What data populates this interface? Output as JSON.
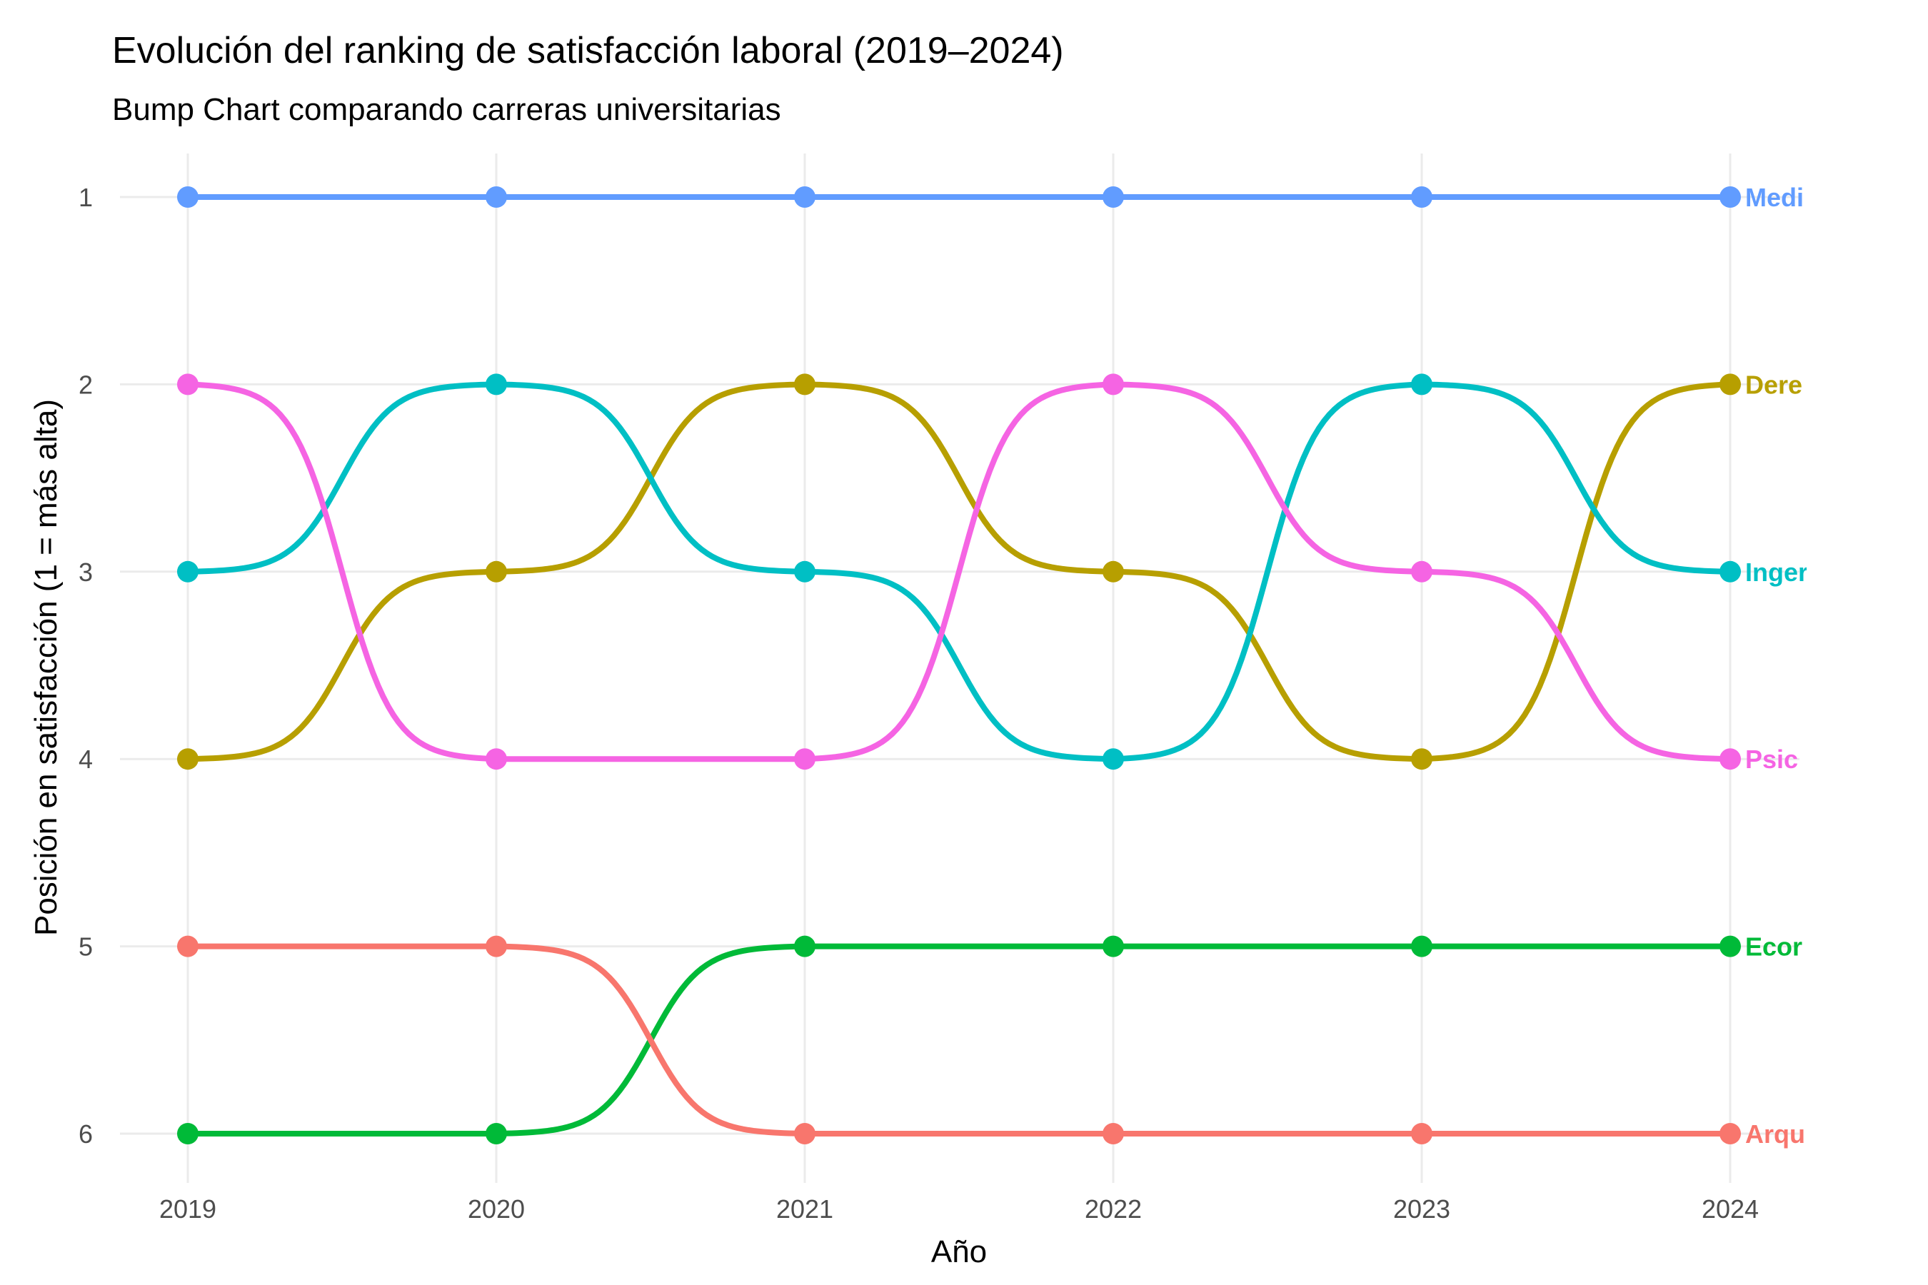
{
  "chart_data": {
    "type": "line",
    "title": "Evolución del ranking de satisfacción laboral (2019–2024)",
    "subtitle": "Bump Chart comparando carreras universitarias",
    "xlabel": "Año",
    "ylabel": "Posición en satisfacción (1 = más alta)",
    "x": [
      2019,
      2020,
      2021,
      2022,
      2023,
      2024
    ],
    "x_tick_labels": [
      "2019",
      "2020",
      "2021",
      "2022",
      "2023",
      "2024"
    ],
    "y_ticks": [
      1,
      2,
      3,
      4,
      5,
      6
    ],
    "y_tick_labels": [
      "1",
      "2",
      "3",
      "4",
      "5",
      "6"
    ],
    "ylim": [
      6,
      1
    ],
    "y_reversed": true,
    "grid": true,
    "legend": "none",
    "series": [
      {
        "label": "Medi",
        "color": "#619CFF",
        "values": [
          1,
          1,
          1,
          1,
          1,
          1
        ]
      },
      {
        "label": "Dere",
        "color": "#B79F00",
        "values": [
          4,
          3,
          2,
          3,
          4,
          2
        ]
      },
      {
        "label": "Inger",
        "color": "#00BFC4",
        "values": [
          3,
          2,
          3,
          4,
          2,
          3
        ]
      },
      {
        "label": "Psic",
        "color": "#F564E3",
        "values": [
          2,
          4,
          4,
          2,
          3,
          4
        ]
      },
      {
        "label": "Ecor",
        "color": "#00BA38",
        "values": [
          6,
          6,
          5,
          5,
          5,
          5
        ]
      },
      {
        "label": "Arqu",
        "color": "#F8766D",
        "values": [
          5,
          5,
          6,
          6,
          6,
          6
        ]
      }
    ]
  }
}
